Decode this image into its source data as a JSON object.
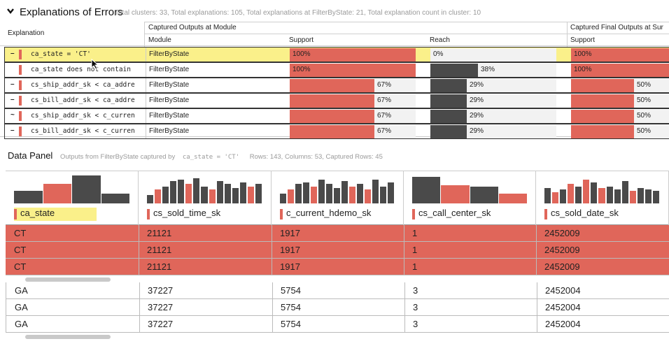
{
  "header": {
    "title": "Explanations of Errors",
    "summary": "Total clusters: 33, Total explanations: 105, Total explanations at FilterByState: 21, Total explanation count in cluster: 10"
  },
  "errors_table": {
    "col_explanation": "Explanation",
    "group_module": "Captured Outputs at Module",
    "group_final": "Captured Final Outputs at Sur",
    "col_module": "Module",
    "col_support": "Support",
    "col_reach": "Reach",
    "col_final_support": "Support",
    "rows": [
      {
        "toggle": "–",
        "explanation": "ca_state = 'CT'",
        "module": "FilterByState",
        "support": 1.0,
        "support_label": "100%",
        "reach": 0.0,
        "reach_label": "0%",
        "final": 1.0,
        "final_label": "100%",
        "selected": true
      },
      {
        "toggle": "",
        "explanation": "ca_state does not contain",
        "module": "FilterByState",
        "support": 1.0,
        "support_label": "100%",
        "reach": 0.38,
        "reach_label": "38%",
        "final": 1.0,
        "final_label": "100%",
        "selected": false
      },
      {
        "toggle": "–",
        "explanation": "cs_ship_addr_sk < ca_addre",
        "module": "FilterByState",
        "support": 0.67,
        "support_label": "67%",
        "reach": 0.29,
        "reach_label": "29%",
        "final": 0.5,
        "final_label": "50%",
        "selected": false
      },
      {
        "toggle": "–",
        "explanation": "cs_bill_addr_sk < ca_addre",
        "module": "FilterByState",
        "support": 0.67,
        "support_label": "67%",
        "reach": 0.29,
        "reach_label": "29%",
        "final": 0.5,
        "final_label": "50%",
        "selected": false
      },
      {
        "toggle": "~",
        "explanation": "cs_ship_addr_sk < c_curren",
        "module": "FilterByState",
        "support": 0.67,
        "support_label": "67%",
        "reach": 0.29,
        "reach_label": "29%",
        "final": 0.5,
        "final_label": "50%",
        "selected": false
      },
      {
        "toggle": "–",
        "explanation": "cs_bill_addr_sk < c_curren",
        "module": "FilterByState",
        "support": 0.67,
        "support_label": "67%",
        "reach": 0.29,
        "reach_label": "29%",
        "final": 0.5,
        "final_label": "50%",
        "selected": false
      }
    ]
  },
  "data_panel": {
    "title": "Data Panel",
    "subtitle_prefix": "Outputs from FilterByState captured by",
    "subtitle_predicate": "ca_state = 'CT'",
    "subtitle_counts": "Rows: 143, Columns: 53, Captured Rows: 45",
    "columns": [
      {
        "name": "ca_state",
        "selected": true
      },
      {
        "name": "cs_sold_time_sk",
        "selected": false
      },
      {
        "name": "c_current_hdemo_sk",
        "selected": false
      },
      {
        "name": "cs_call_center_sk",
        "selected": false
      },
      {
        "name": "cs_sold_date_sk",
        "selected": false
      }
    ],
    "captured_rows": [
      [
        "CT",
        "21121",
        "1917",
        "1",
        "2452009"
      ],
      [
        "CT",
        "21121",
        "1917",
        "1",
        "2452009"
      ],
      [
        "CT",
        "21121",
        "1917",
        "1",
        "2452009"
      ]
    ],
    "other_rows": [
      [
        "GA",
        "37227",
        "5754",
        "3",
        "2452004"
      ],
      [
        "GA",
        "37227",
        "5754",
        "3",
        "2452004"
      ],
      [
        "GA",
        "37227",
        "5754",
        "3",
        "2452004"
      ]
    ]
  },
  "colors": {
    "captured": "#e0665a",
    "uncaptured": "#4a4a4a",
    "selection": "#faf08a"
  }
}
